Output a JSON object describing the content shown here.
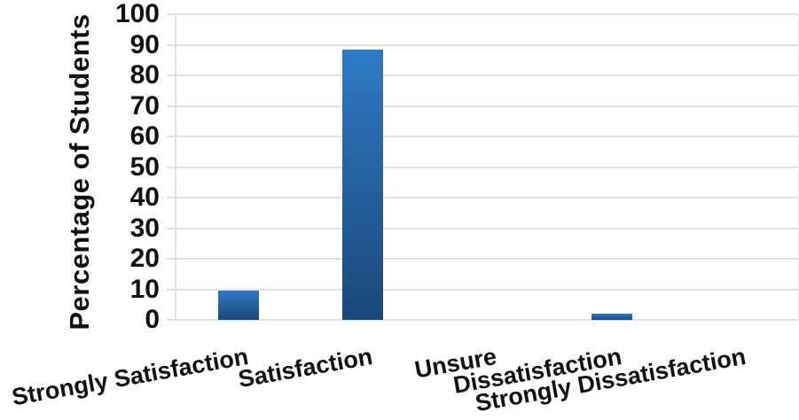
{
  "chart_data": {
    "type": "bar",
    "title": "",
    "ylabel": "Percentage of Students",
    "xlabel": "",
    "categories": [
      "Strongly Satisfaction",
      "Satisfaction",
      "Unsure",
      "Dissatisfaction",
      "Strongly Dissatisfaction"
    ],
    "values": [
      9.5,
      88.5,
      0,
      2,
      0
    ],
    "ylim": [
      0,
      100
    ],
    "ytick_step": 10,
    "ytick_labels": [
      "0",
      "10",
      "20",
      "30",
      "40",
      "50",
      "60",
      "70",
      "80",
      "90",
      "100"
    ],
    "grid": true,
    "legend": false,
    "x_label_rotation_deg": -10,
    "colors": {
      "bar_gradient_top": "#2f7ac5",
      "bar_gradient_bottom": "#1a4878",
      "gridline": "#e2e2e2",
      "text": "#111111",
      "background": "#ffffff"
    }
  }
}
